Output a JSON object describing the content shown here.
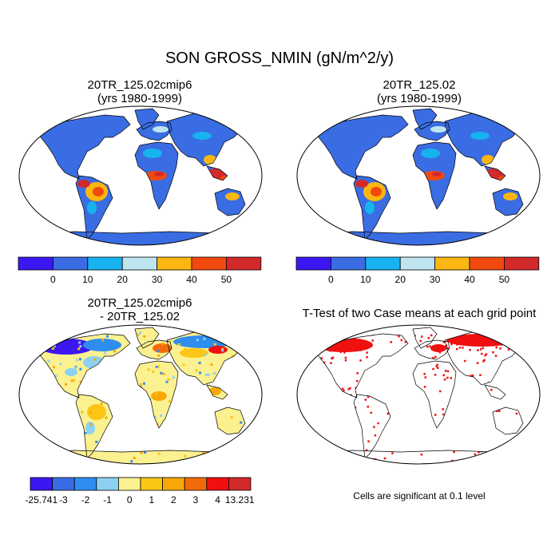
{
  "figure": {
    "title": "SON GROSS_NMIN (gN/m^2/y)"
  },
  "panels": [
    {
      "id": "case",
      "title_line1": "20TR_125.02cmip6",
      "title_line2": "(yrs 1980-1999)"
    },
    {
      "id": "control",
      "title_line1": "20TR_125.02",
      "title_line2": "(yrs 1980-1999)"
    },
    {
      "id": "difference",
      "title_line1": "20TR_125.02cmip6",
      "title_line2": "- 20TR_125.02"
    },
    {
      "id": "ttest",
      "title_line1": "T-Test of two Case means at each grid point",
      "title_line2": ""
    }
  ],
  "colorbars": {
    "field": {
      "colors": [
        "#3c17f2",
        "#3a6de3",
        "#17b3ef",
        "#bfe5f0",
        "#fbb612",
        "#f24a0e",
        "#d2292b"
      ],
      "labels": [
        "0",
        "10",
        "20",
        "30",
        "40",
        "50"
      ]
    },
    "difference": {
      "colors": [
        "#3c17f2",
        "#3a6de3",
        "#2f8df0",
        "#8dd1f2",
        "#fcf190",
        "#fcc617",
        "#f7a707",
        "#f26b0b",
        "#f01010",
        "#d2292b"
      ],
      "labels": [
        "-25.741",
        "-3",
        "-2",
        "-1",
        "0",
        "1",
        "2",
        "3",
        "4",
        "13.231"
      ]
    }
  },
  "map_colors": {
    "ocean": "#ffffff",
    "case_land_base": "#3a6de3",
    "diff_land_base": "#fcf190",
    "ttest_signif": "#f01010",
    "coast": "#000000"
  },
  "ttest_note": "Cells are significant at 0.1 level"
}
